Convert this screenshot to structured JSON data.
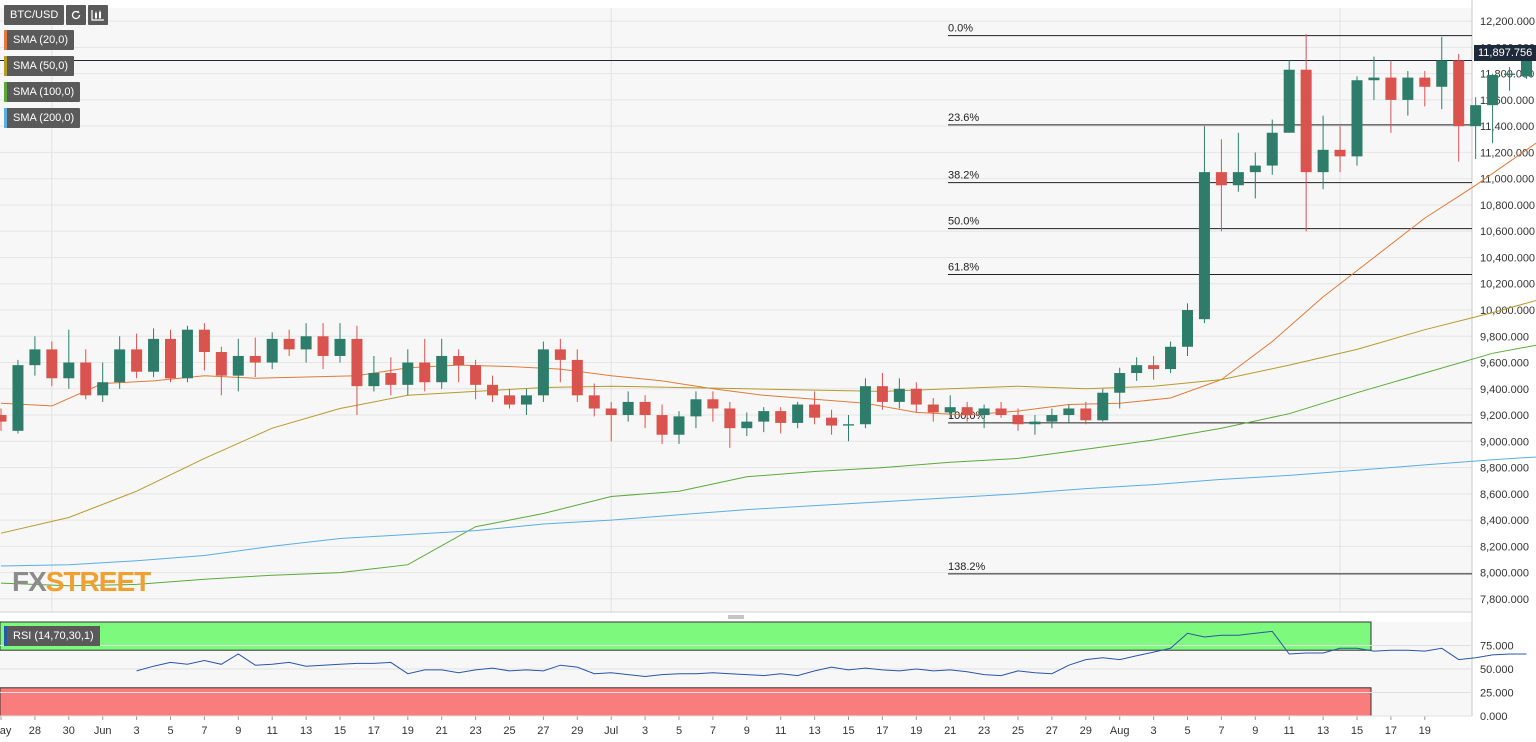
{
  "toolbar": {
    "symbol": "BTC/USD",
    "refresh_icon": "refresh-icon",
    "chart_icon": "candlestick-chart-icon"
  },
  "indicators": [
    {
      "label": "SMA (20,0)",
      "color": "#e07b39"
    },
    {
      "label": "SMA (50,0)",
      "color": "#b59a2e"
    },
    {
      "label": "SMA (100,0)",
      "color": "#5aaa3a"
    },
    {
      "label": "SMA (200,0)",
      "color": "#5aaee0"
    }
  ],
  "current_price": "11,897.756",
  "logo": {
    "part1": "FX",
    "part2": "STREET"
  },
  "chart_data": {
    "type": "candlestick",
    "ylim": [
      7700,
      12300
    ],
    "y_ticks": [
      "7,800.000",
      "8,000.000",
      "8,200.000",
      "8,400.000",
      "8,600.000",
      "8,800.000",
      "9,000.000",
      "9,200.000",
      "9,400.000",
      "9,600.000",
      "9,800.000",
      "10,000.000",
      "10,200.000",
      "10,400.000",
      "10,600.000",
      "10,800.000",
      "11,000.000",
      "11,200.000",
      "11,400.000",
      "11,600.000",
      "11,800.000",
      "12,000.000",
      "12,200.000"
    ],
    "x_labels": [
      "May",
      "28",
      "30",
      "Jun",
      "3",
      "5",
      "7",
      "9",
      "11",
      "13",
      "15",
      "17",
      "19",
      "21",
      "23",
      "25",
      "27",
      "29",
      "Jul",
      "3",
      "5",
      "7",
      "9",
      "11",
      "13",
      "15",
      "17",
      "19",
      "21",
      "23",
      "25",
      "27",
      "29",
      "Aug",
      "3",
      "5",
      "7",
      "9",
      "11",
      "13",
      "15",
      "17",
      "19"
    ],
    "candles": [
      [
        9200,
        9150,
        9250,
        9080
      ],
      [
        9080,
        9580,
        9620,
        9060
      ],
      [
        9580,
        9700,
        9800,
        9500
      ],
      [
        9700,
        9480,
        9760,
        9420
      ],
      [
        9480,
        9600,
        9850,
        9400
      ],
      [
        9600,
        9350,
        9700,
        9320
      ],
      [
        9350,
        9450,
        9600,
        9300
      ],
      [
        9450,
        9700,
        9800,
        9400
      ],
      [
        9700,
        9530,
        9820,
        9480
      ],
      [
        9530,
        9780,
        9860,
        9490
      ],
      [
        9780,
        9480,
        9850,
        9450
      ],
      [
        9480,
        9850,
        9880,
        9450
      ],
      [
        9850,
        9680,
        9900,
        9540
      ],
      [
        9680,
        9500,
        9720,
        9350
      ],
      [
        9500,
        9650,
        9780,
        9380
      ],
      [
        9650,
        9600,
        9790,
        9490
      ],
      [
        9600,
        9780,
        9830,
        9550
      ],
      [
        9780,
        9700,
        9850,
        9650
      ],
      [
        9700,
        9800,
        9900,
        9600
      ],
      [
        9800,
        9650,
        9900,
        9550
      ],
      [
        9650,
        9780,
        9900,
        9600
      ],
      [
        9780,
        9420,
        9880,
        9200
      ],
      [
        9420,
        9520,
        9650,
        9380
      ],
      [
        9520,
        9430,
        9640,
        9350
      ],
      [
        9430,
        9600,
        9700,
        9350
      ],
      [
        9600,
        9450,
        9780,
        9380
      ],
      [
        9450,
        9650,
        9780,
        9400
      ],
      [
        9650,
        9580,
        9700,
        9450
      ],
      [
        9580,
        9430,
        9620,
        9320
      ],
      [
        9430,
        9350,
        9500,
        9300
      ],
      [
        9350,
        9280,
        9400,
        9250
      ],
      [
        9280,
        9350,
        9400,
        9200
      ],
      [
        9350,
        9700,
        9760,
        9300
      ],
      [
        9700,
        9620,
        9780,
        9450
      ],
      [
        9620,
        9350,
        9700,
        9300
      ],
      [
        9350,
        9250,
        9440,
        9190
      ],
      [
        9250,
        9200,
        9300,
        9000
      ],
      [
        9200,
        9300,
        9380,
        9150
      ],
      [
        9300,
        9200,
        9350,
        9100
      ],
      [
        9200,
        9050,
        9280,
        8980
      ],
      [
        9050,
        9190,
        9230,
        8980
      ],
      [
        9190,
        9320,
        9380,
        9100
      ],
      [
        9320,
        9250,
        9380,
        9150
      ],
      [
        9250,
        9100,
        9300,
        8950
      ],
      [
        9100,
        9150,
        9220,
        9040
      ],
      [
        9150,
        9230,
        9260,
        9070
      ],
      [
        9230,
        9140,
        9260,
        9060
      ],
      [
        9140,
        9280,
        9300,
        9100
      ],
      [
        9280,
        9180,
        9380,
        9130
      ],
      [
        9180,
        9120,
        9240,
        9050
      ],
      [
        9120,
        9130,
        9200,
        9000
      ],
      [
        9130,
        9420,
        9480,
        9100
      ],
      [
        9420,
        9300,
        9520,
        9240
      ],
      [
        9300,
        9400,
        9480,
        9250
      ],
      [
        9400,
        9280,
        9450,
        9220
      ],
      [
        9280,
        9220,
        9330,
        9150
      ],
      [
        9220,
        9260,
        9350,
        9180
      ],
      [
        9260,
        9200,
        9300,
        9150
      ],
      [
        9200,
        9250,
        9280,
        9100
      ],
      [
        9250,
        9200,
        9300,
        9180
      ],
      [
        9200,
        9130,
        9250,
        9080
      ],
      [
        9130,
        9150,
        9200,
        9050
      ],
      [
        9150,
        9200,
        9250,
        9100
      ],
      [
        9200,
        9250,
        9280,
        9140
      ],
      [
        9250,
        9160,
        9300,
        9130
      ],
      [
        9160,
        9370,
        9400,
        9150
      ],
      [
        9370,
        9520,
        9560,
        9250
      ],
      [
        9520,
        9580,
        9640,
        9460
      ],
      [
        9580,
        9550,
        9650,
        9470
      ],
      [
        9550,
        9720,
        9760,
        9520
      ],
      [
        9720,
        10000,
        10050,
        9650
      ],
      [
        9930,
        11050,
        11400,
        9900
      ],
      [
        11050,
        10950,
        11300,
        10600
      ],
      [
        10950,
        11050,
        11350,
        10900
      ],
      [
        11050,
        11100,
        11200,
        10850
      ],
      [
        11100,
        11350,
        11450,
        11030
      ],
      [
        11350,
        11830,
        11900,
        11350
      ],
      [
        11830,
        11050,
        12100,
        10600
      ],
      [
        11050,
        11220,
        11480,
        10920
      ],
      [
        11220,
        11170,
        11400,
        11050
      ],
      [
        11170,
        11750,
        11780,
        11100
      ],
      [
        11750,
        11770,
        11930,
        11600
      ],
      [
        11770,
        11600,
        11900,
        11350
      ],
      [
        11600,
        11770,
        11820,
        11480
      ],
      [
        11770,
        11700,
        11820,
        11550
      ],
      [
        11700,
        11900,
        12080,
        11530
      ],
      [
        11900,
        11400,
        11950,
        11130
      ],
      [
        11400,
        11560,
        11620,
        11150
      ],
      [
        11560,
        11790,
        11800,
        11270
      ],
      [
        11790,
        11800,
        11850,
        11670
      ],
      [
        11780,
        11900,
        12000,
        11760
      ]
    ],
    "sma_series": [
      {
        "name": "SMA (20,0)",
        "color": "#e07b39",
        "values": [
          [
            0,
            9290
          ],
          [
            3,
            9270
          ],
          [
            6,
            9440
          ],
          [
            9,
            9460
          ],
          [
            12,
            9500
          ],
          [
            15,
            9480
          ],
          [
            18,
            9490
          ],
          [
            21,
            9500
          ],
          [
            24,
            9560
          ],
          [
            27,
            9580
          ],
          [
            30,
            9570
          ],
          [
            33,
            9550
          ],
          [
            36,
            9500
          ],
          [
            39,
            9460
          ],
          [
            42,
            9400
          ],
          [
            45,
            9350
          ],
          [
            48,
            9320
          ],
          [
            51,
            9290
          ],
          [
            54,
            9220
          ],
          [
            57,
            9200
          ],
          [
            60,
            9230
          ],
          [
            63,
            9280
          ],
          [
            66,
            9290
          ],
          [
            69,
            9330
          ],
          [
            72,
            9470
          ],
          [
            75,
            9760
          ],
          [
            78,
            10100
          ],
          [
            81,
            10400
          ],
          [
            84,
            10700
          ],
          [
            87,
            10950
          ],
          [
            90,
            11220
          ],
          [
            93,
            11490
          ]
        ]
      },
      {
        "name": "SMA (50,0)",
        "color": "#b59a2e",
        "values": [
          [
            0,
            8300
          ],
          [
            4,
            8420
          ],
          [
            8,
            8620
          ],
          [
            12,
            8870
          ],
          [
            16,
            9100
          ],
          [
            20,
            9250
          ],
          [
            24,
            9350
          ],
          [
            28,
            9380
          ],
          [
            32,
            9410
          ],
          [
            36,
            9420
          ],
          [
            40,
            9410
          ],
          [
            44,
            9400
          ],
          [
            48,
            9390
          ],
          [
            52,
            9380
          ],
          [
            56,
            9400
          ],
          [
            60,
            9420
          ],
          [
            64,
            9400
          ],
          [
            68,
            9420
          ],
          [
            72,
            9470
          ],
          [
            76,
            9580
          ],
          [
            80,
            9700
          ],
          [
            84,
            9850
          ],
          [
            88,
            9980
          ],
          [
            93,
            10160
          ]
        ]
      },
      {
        "name": "SMA (100,0)",
        "color": "#5aaa3a",
        "values": [
          [
            0,
            7920
          ],
          [
            4,
            7900
          ],
          [
            8,
            7910
          ],
          [
            12,
            7950
          ],
          [
            16,
            7980
          ],
          [
            20,
            8000
          ],
          [
            24,
            8060
          ],
          [
            28,
            8350
          ],
          [
            32,
            8450
          ],
          [
            36,
            8580
          ],
          [
            40,
            8620
          ],
          [
            44,
            8730
          ],
          [
            48,
            8770
          ],
          [
            52,
            8800
          ],
          [
            56,
            8840
          ],
          [
            60,
            8870
          ],
          [
            64,
            8940
          ],
          [
            68,
            9010
          ],
          [
            72,
            9100
          ],
          [
            76,
            9210
          ],
          [
            80,
            9370
          ],
          [
            84,
            9520
          ],
          [
            88,
            9670
          ],
          [
            93,
            9790
          ]
        ]
      },
      {
        "name": "SMA (200,0)",
        "color": "#5aaee0",
        "values": [
          [
            0,
            8050
          ],
          [
            4,
            8060
          ],
          [
            8,
            8090
          ],
          [
            12,
            8130
          ],
          [
            16,
            8200
          ],
          [
            20,
            8260
          ],
          [
            24,
            8290
          ],
          [
            28,
            8320
          ],
          [
            32,
            8370
          ],
          [
            36,
            8400
          ],
          [
            40,
            8440
          ],
          [
            44,
            8480
          ],
          [
            48,
            8510
          ],
          [
            52,
            8540
          ],
          [
            56,
            8570
          ],
          [
            60,
            8600
          ],
          [
            64,
            8640
          ],
          [
            68,
            8670
          ],
          [
            72,
            8710
          ],
          [
            76,
            8740
          ],
          [
            80,
            8780
          ],
          [
            84,
            8820
          ],
          [
            88,
            8860
          ],
          [
            93,
            8900
          ]
        ]
      }
    ],
    "fib_levels": [
      {
        "label": "0.0%",
        "value": 12090
      },
      {
        "label": "23.6%",
        "value": 11410
      },
      {
        "label": "38.2%",
        "value": 10970
      },
      {
        "label": "50.0%",
        "value": 10620
      },
      {
        "label": "61.8%",
        "value": 10270
      },
      {
        "label": "100.0%",
        "value": 9140
      },
      {
        "label": "138.2%",
        "value": 7990
      }
    ],
    "rsi": {
      "label": "RSI (14,70,30,1)",
      "ylim": [
        0,
        100
      ],
      "y_ticks": [
        "0.000",
        "25.000",
        "50.000",
        "75.000"
      ],
      "overbought": 70,
      "oversold": 30,
      "values": [
        48,
        53,
        57,
        55,
        59,
        55,
        66,
        54,
        55,
        57,
        53,
        54,
        55,
        56,
        56,
        57,
        45,
        49,
        49,
        46,
        49,
        51,
        48,
        49,
        48,
        54,
        52,
        45,
        46,
        44,
        42,
        44,
        45,
        45,
        46,
        45,
        44,
        43,
        45,
        43,
        48,
        52,
        49,
        51,
        49,
        48,
        50,
        48,
        49,
        47,
        44,
        43,
        48,
        46,
        45,
        54,
        60,
        62,
        60,
        64,
        68,
        72,
        88,
        84,
        86,
        86,
        88,
        90,
        66,
        67,
        67,
        72,
        72,
        69,
        70,
        70,
        69,
        72,
        60,
        62,
        65,
        66,
        66
      ]
    }
  }
}
